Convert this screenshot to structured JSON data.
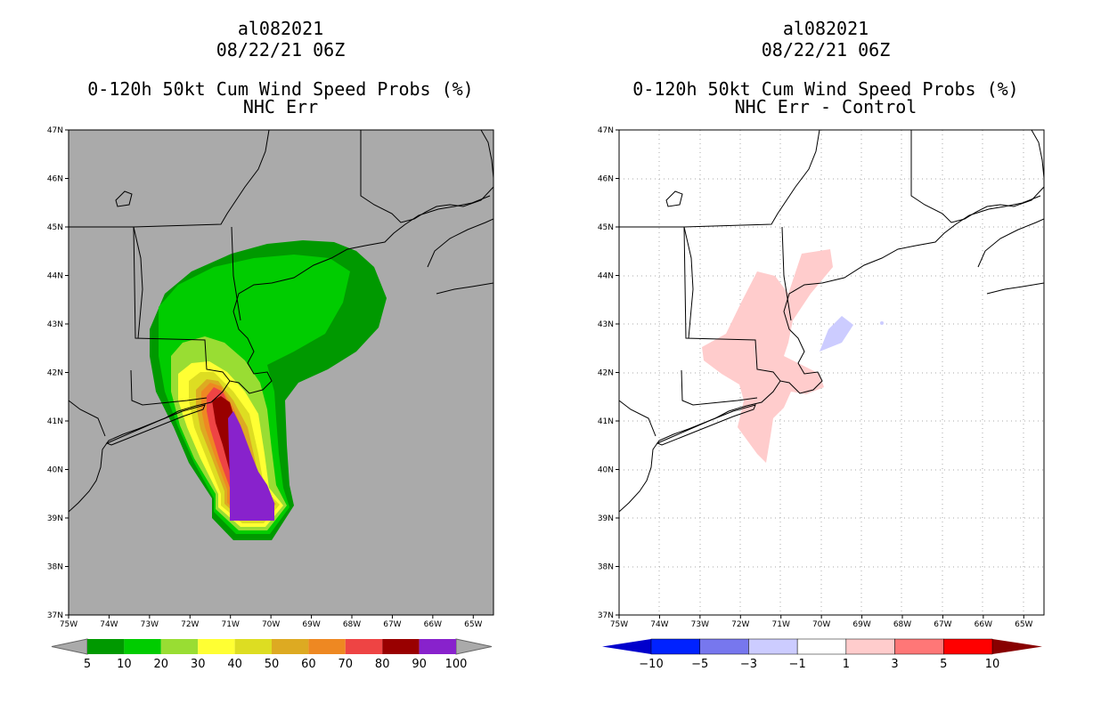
{
  "panels": [
    {
      "storm_id": "al082021",
      "datetime": "08/22/21 06Z",
      "product": "0-120h 50kt Cum Wind Speed Probs (%)",
      "subtitle": "NHC Err"
    },
    {
      "storm_id": "al082021",
      "datetime": "08/22/21 06Z",
      "product": "0-120h 50kt Cum Wind Speed Probs (%)",
      "subtitle": "NHC Err - Control"
    }
  ],
  "axes": {
    "lat_labels": [
      "47N",
      "46N",
      "45N",
      "44N",
      "43N",
      "42N",
      "41N",
      "40N",
      "39N",
      "38N",
      "37N"
    ],
    "lon_labels": [
      "75W",
      "74W",
      "73W",
      "72W",
      "71W",
      "70W",
      "69W",
      "68W",
      "67W",
      "66W",
      "65W"
    ]
  },
  "colorbar_left": {
    "labels": [
      "5",
      "10",
      "20",
      "30",
      "40",
      "50",
      "60",
      "70",
      "80",
      "90",
      "100"
    ],
    "colors": [
      "#009900",
      "#00cc00",
      "#99dd33",
      "#ffff33",
      "#dddd22",
      "#ddaa22",
      "#ee8822",
      "#ee4444",
      "#990000",
      "#8822cc"
    ]
  },
  "colorbar_right": {
    "labels": [
      "−10",
      "−5",
      "−3",
      "−1",
      "1",
      "3",
      "5",
      "10"
    ],
    "colors": [
      "#0000cc",
      "#0022ff",
      "#7777ee",
      "#ccccff",
      "#ffffff",
      "#ffcccc",
      "#ff7777",
      "#ff0000",
      "#880000"
    ]
  }
}
